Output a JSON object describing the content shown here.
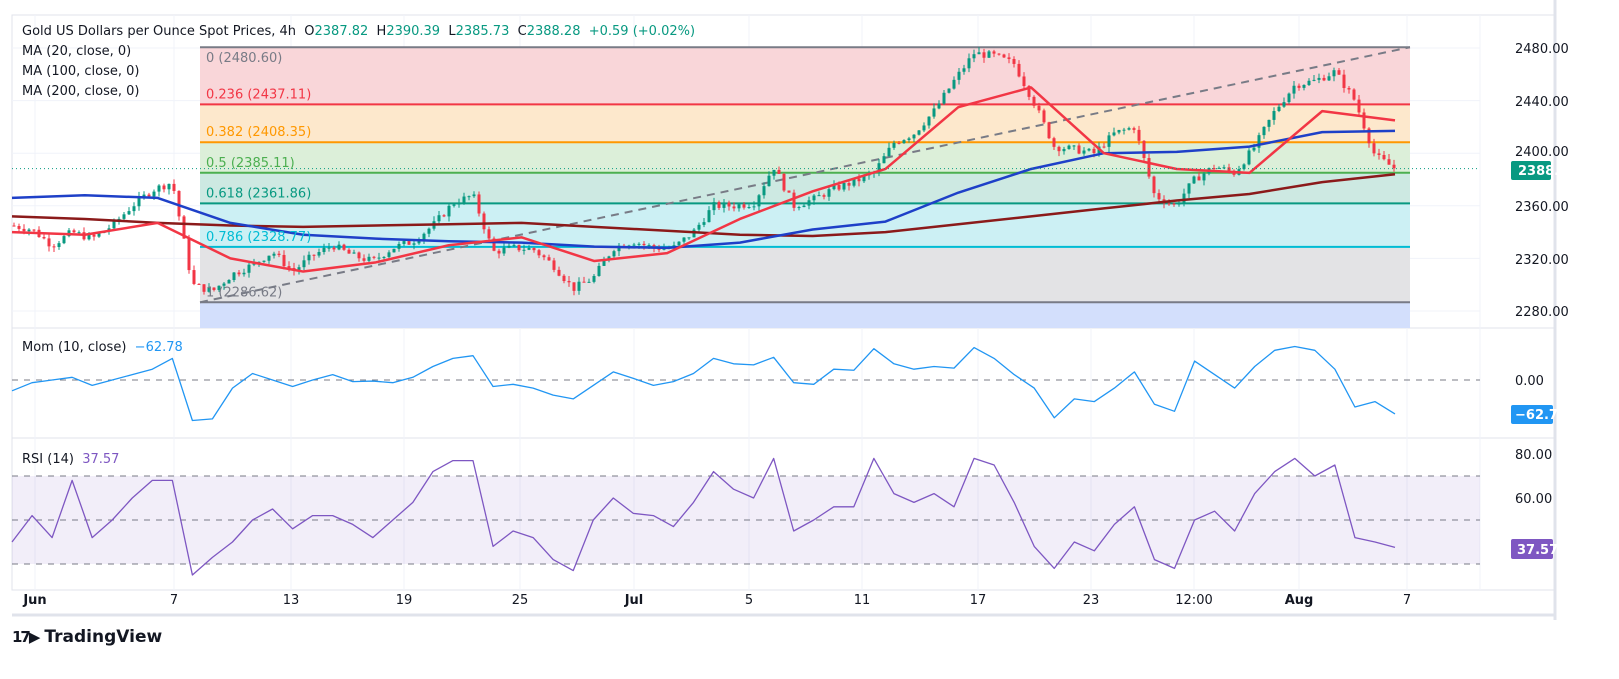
{
  "header": {
    "symbol": "Gold US Dollars per Ounce Spot Prices, 4h",
    "o_label": "O",
    "o": "2387.82",
    "h_label": "H",
    "h": "2390.39",
    "l_label": "L",
    "l": "2385.73",
    "c_label": "C",
    "c": "2388.28",
    "change": "+0.59 (+0.02%)"
  },
  "indicators": {
    "ma20": "MA (20, close, 0)",
    "ma100": "MA (100, close, 0)",
    "ma200": "MA (200, close, 0)",
    "mom": "Mom (10, close)",
    "mom_value": "−62.78",
    "rsi": "RSI (14)",
    "rsi_value": "37.57"
  },
  "colors": {
    "up": "#089981",
    "down": "#f23645",
    "ma20": "#f23645",
    "ma100": "#1e40c8",
    "ma200": "#8b1a1a",
    "mom": "#2196f3",
    "rsi": "#7e57c2"
  },
  "fib": [
    {
      "level": "0",
      "price": "(2480.60)",
      "value": 2480.6,
      "color": "#787b86"
    },
    {
      "level": "0.236",
      "price": "(2437.11)",
      "value": 2437.11,
      "color": "#f23645"
    },
    {
      "level": "0.382",
      "price": "(2408.35)",
      "value": 2408.35,
      "color": "#ff9800"
    },
    {
      "level": "0.5",
      "price": "(2385.11)",
      "value": 2385.11,
      "color": "#4caf50"
    },
    {
      "level": "0.618",
      "price": "(2361.86)",
      "value": 2361.86,
      "color": "#089981"
    },
    {
      "level": "0.786",
      "price": "(2328.77)",
      "value": 2328.77,
      "color": "#00bcd4"
    },
    {
      "level": "1",
      "price": "(2286.62)",
      "value": 2286.62,
      "color": "#787b86"
    }
  ],
  "price_axis": [
    "2480.00",
    "2440.00",
    "2400.00",
    "2360.00",
    "2320.00",
    "2280.00"
  ],
  "price_tag": "2388.28",
  "mom_axis": [
    "0.00"
  ],
  "mom_tag": "−62.78",
  "rsi_axis": [
    "80.00",
    "60.00"
  ],
  "rsi_tag": "37.57",
  "time_axis": [
    "Jun",
    "7",
    "13",
    "19",
    "25",
    "Jul",
    "5",
    "11",
    "17",
    "23",
    "12:00",
    "Aug",
    "7"
  ],
  "brand": "TradingView",
  "chart_data": {
    "type": "candlestick",
    "title": "Gold US Dollars per Ounce Spot Prices, 4h",
    "ylim": [
      2270,
      2490
    ],
    "grid": true,
    "x_ticks": [
      "Jun",
      "7",
      "13",
      "19",
      "25",
      "Jul",
      "5",
      "11",
      "17",
      "23",
      "12:00",
      "Aug",
      "7"
    ],
    "close": [
      2345,
      2342,
      2330,
      2340,
      2335,
      2345,
      2360,
      2372,
      2378,
      2300,
      2295,
      2308,
      2315,
      2325,
      2310,
      2322,
      2330,
      2322,
      2318,
      2328,
      2333,
      2345,
      2362,
      2368,
      2325,
      2328,
      2327,
      2315,
      2297,
      2305,
      2328,
      2333,
      2328,
      2328,
      2340,
      2360,
      2360,
      2362,
      2390,
      2360,
      2365,
      2373,
      2378,
      2385,
      2408,
      2415,
      2432,
      2455,
      2476,
      2474,
      2468,
      2438,
      2405,
      2403,
      2400,
      2415,
      2420,
      2368,
      2360,
      2380,
      2390,
      2385,
      2405,
      2432,
      2452,
      2455,
      2462,
      2440,
      2398,
      2388.28
    ],
    "ma20": [
      2340,
      2338,
      2347,
      2320,
      2310,
      2317,
      2330,
      2336,
      2318,
      2324,
      2350,
      2371,
      2388,
      2435,
      2450,
      2400,
      2388,
      2385,
      2432,
      2425
    ],
    "ma100": [
      2366,
      2368,
      2366,
      2347,
      2338,
      2335,
      2333,
      2332,
      2329,
      2328,
      2332,
      2342,
      2348,
      2370,
      2388,
      2400,
      2401,
      2405,
      2416,
      2417
    ],
    "ma200": [
      2352,
      2350,
      2347,
      2345,
      2344,
      2345,
      2346,
      2347,
      2344,
      2341,
      2338,
      2337,
      2340,
      2346,
      2352,
      2358,
      2364,
      2369,
      2378,
      2384
    ],
    "momentum": [
      -20,
      -5,
      0,
      5,
      -10,
      0,
      10,
      20,
      40,
      -75,
      -72,
      -15,
      12,
      0,
      -12,
      0,
      10,
      -3,
      -2,
      -5,
      5,
      25,
      40,
      45,
      -12,
      -8,
      -15,
      -28,
      -35,
      -10,
      15,
      3,
      -10,
      -3,
      12,
      40,
      30,
      28,
      42,
      -5,
      -8,
      20,
      18,
      58,
      30,
      20,
      25,
      22,
      60,
      40,
      10,
      -15,
      -70,
      -35,
      -40,
      -15,
      15,
      -45,
      -58,
      35,
      10,
      -15,
      25,
      55,
      62,
      55,
      20,
      -50,
      -40,
      -62.78
    ],
    "rsi": [
      40,
      52,
      42,
      68,
      42,
      50,
      60,
      68,
      68,
      25,
      33,
      40,
      50,
      55,
      46,
      52,
      52,
      48,
      42,
      50,
      58,
      72,
      77,
      77,
      38,
      45,
      42,
      32,
      27,
      50,
      60,
      53,
      52,
      47,
      58,
      72,
      64,
      60,
      78,
      45,
      50,
      56,
      56,
      78,
      62,
      58,
      62,
      56,
      78,
      75,
      58,
      38,
      28,
      40,
      36,
      48,
      56,
      32,
      28,
      50,
      54,
      45,
      62,
      72,
      78,
      70,
      75,
      42,
      40,
      37.57
    ],
    "rsi_bands": [
      30,
      50,
      70
    ]
  }
}
